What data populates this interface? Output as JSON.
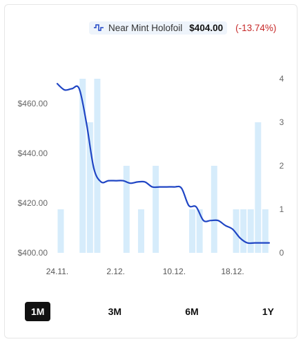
{
  "legend": {
    "series_name": "Near Mint Holofoil",
    "price": "$404.00",
    "change": "(-13.74%)",
    "line_color": "#1f45c4"
  },
  "tabs": [
    {
      "label": "1M",
      "active": true
    },
    {
      "label": "3M",
      "active": false
    },
    {
      "label": "6M",
      "active": false
    },
    {
      "label": "1Y",
      "active": false
    }
  ],
  "chart_data": {
    "type": "line",
    "x_tick_labels": [
      "24.11.",
      "2.12.",
      "10.12.",
      "18.12."
    ],
    "y_left": {
      "ticks": [
        "$400.00",
        "$420.00",
        "$440.00",
        "$460.00"
      ],
      "range": [
        400,
        468
      ]
    },
    "y_right": {
      "ticks": [
        "0",
        "1",
        "2",
        "3",
        "4"
      ],
      "range": [
        0,
        4
      ]
    },
    "series": [
      {
        "name": "Near Mint Holofoil",
        "axis": "left",
        "color": "#1f45c4",
        "x": [
          "24.11.",
          "25.11.",
          "26.11.",
          "27.11.",
          "28.11.",
          "29.11.",
          "30.11.",
          "1.12.",
          "2.12.",
          "3.12.",
          "4.12.",
          "5.12.",
          "6.12.",
          "7.12.",
          "8.12.",
          "9.12.",
          "10.12.",
          "11.12.",
          "12.12.",
          "13.12.",
          "14.12.",
          "15.12.",
          "16.12.",
          "17.12.",
          "18.12.",
          "19.12.",
          "20.12.",
          "21.12.",
          "22.12.",
          "23.12."
        ],
        "values": [
          468,
          465.5,
          466,
          466,
          452,
          434,
          428.5,
          429,
          429,
          429,
          428,
          428.5,
          428.5,
          426.5,
          426.5,
          426.5,
          426.5,
          426,
          419,
          418.5,
          413,
          413,
          413,
          411,
          409.5,
          406,
          404,
          404,
          404,
          404
        ]
      },
      {
        "name": "",
        "axis": "right",
        "type": "bar",
        "color": "#d6ecfb",
        "x": [
          "24.11.",
          "25.11.",
          "26.11.",
          "27.11.",
          "28.11.",
          "29.11.",
          "30.11.",
          "1.12.",
          "2.12.",
          "3.12.",
          "4.12.",
          "5.12.",
          "6.12.",
          "7.12.",
          "8.12.",
          "9.12.",
          "10.12.",
          "11.12.",
          "12.12.",
          "13.12.",
          "14.12.",
          "15.12.",
          "16.12.",
          "17.12.",
          "18.12.",
          "19.12.",
          "20.12.",
          "21.12.",
          "22.12.",
          "23.12."
        ],
        "values": [
          1,
          0,
          0,
          4,
          3,
          4,
          0,
          0,
          0,
          2,
          0,
          1,
          0,
          2,
          0,
          0,
          0,
          0,
          1,
          1,
          0,
          2,
          0,
          0,
          1,
          1,
          1,
          3,
          1,
          0
        ]
      }
    ]
  }
}
